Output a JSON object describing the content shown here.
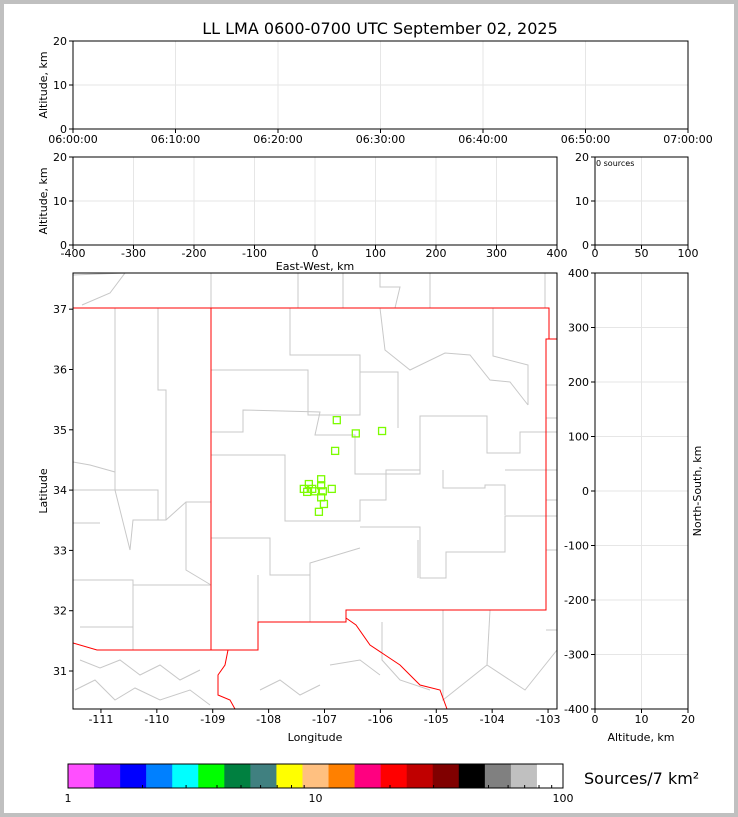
{
  "chart_data": [
    {
      "type": "scatter",
      "panel": "time-altitude",
      "title": "LL LMA 0600-0700 UTC September 02, 2025",
      "ylabel": "Altitude, km",
      "xlim": [
        "06:00:00",
        "07:00:00"
      ],
      "ylim": [
        0,
        20
      ],
      "xticks": [
        "06:00:00",
        "06:10:00",
        "06:20:00",
        "06:30:00",
        "06:40:00",
        "06:50:00",
        "07:00:00"
      ],
      "yticks": [
        0,
        10,
        20
      ],
      "grid": true,
      "points": []
    },
    {
      "type": "scatter",
      "panel": "eastwest-altitude",
      "xlabel": "East-West, km",
      "ylabel": "Altitude, km",
      "xlim": [
        -400,
        400
      ],
      "ylim": [
        0,
        20
      ],
      "xticks": [
        -400,
        -300,
        -200,
        -100,
        0,
        100,
        200,
        300,
        400
      ],
      "yticks": [
        0,
        10,
        20
      ],
      "grid": true,
      "points": []
    },
    {
      "type": "histogram",
      "panel": "altitude-histogram",
      "annotation": "0 sources",
      "xlim": [
        0,
        100
      ],
      "ylim": [
        0,
        20
      ],
      "xticks": [
        0,
        50,
        100
      ],
      "yticks": [
        0,
        10,
        20
      ],
      "grid": true
    },
    {
      "type": "scatter",
      "panel": "plan-view",
      "xlabel": "Longitude",
      "ylabel": "Latitude",
      "xlim": [
        -111.5,
        -102.84
      ],
      "ylim": [
        30.37,
        37.6
      ],
      "xticks": [
        -111,
        -110,
        -109,
        -108,
        -107,
        -106,
        -105,
        -104,
        -103
      ],
      "yticks": [
        31,
        32,
        33,
        34,
        35,
        36,
        37
      ],
      "marker": "square",
      "marker_color": "#7cfc00",
      "points": [
        {
          "lon": -106.78,
          "lat": 35.16
        },
        {
          "lon": -106.44,
          "lat": 34.94
        },
        {
          "lon": -105.97,
          "lat": 34.98
        },
        {
          "lon": -106.81,
          "lat": 34.65
        },
        {
          "lon": -107.06,
          "lat": 34.18
        },
        {
          "lon": -107.28,
          "lat": 34.1
        },
        {
          "lon": -107.37,
          "lat": 34.02
        },
        {
          "lon": -107.31,
          "lat": 33.97
        },
        {
          "lon": -107.22,
          "lat": 34.02
        },
        {
          "lon": -107.17,
          "lat": 33.98
        },
        {
          "lon": -107.06,
          "lat": 34.08
        },
        {
          "lon": -107.03,
          "lat": 33.98
        },
        {
          "lon": -106.87,
          "lat": 34.02
        },
        {
          "lon": -107.06,
          "lat": 33.88
        },
        {
          "lon": -107.01,
          "lat": 33.77
        },
        {
          "lon": -107.1,
          "lat": 33.64
        }
      ]
    },
    {
      "type": "scatter",
      "panel": "altitude-northsouth",
      "xlabel": "Altitude, km",
      "ylabel": "North-South, km",
      "xlim": [
        0,
        20
      ],
      "ylim": [
        -400,
        400
      ],
      "xticks": [
        0,
        10,
        20
      ],
      "yticks": [
        -400,
        -300,
        -200,
        -100,
        0,
        100,
        200,
        300,
        400
      ],
      "grid": true,
      "points": []
    }
  ],
  "colorbar": {
    "label": "Sources/7 km²",
    "scale": "log",
    "range": [
      1,
      100
    ],
    "ticks": [
      "1",
      "10",
      "100"
    ],
    "colors": [
      "#ff4fff",
      "#8000ff",
      "#0000ff",
      "#0080ff",
      "#00ffff",
      "#00ff00",
      "#008040",
      "#408080",
      "#ffff00",
      "#ffc080",
      "#ff8000",
      "#ff0080",
      "#ff0000",
      "#c00000",
      "#800000",
      "#000000",
      "#808080",
      "#c0c0c0",
      "#ffffff"
    ]
  },
  "colors": {
    "state_border": "#ff0000",
    "county_border": "#c8c8c8",
    "grid": "#e6e6e6"
  }
}
